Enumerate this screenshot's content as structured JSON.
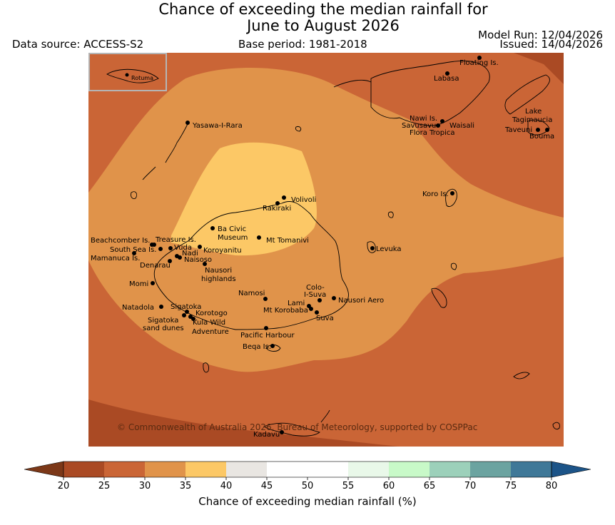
{
  "title": {
    "line1": "Chance of exceeding the median rainfall for",
    "line2": "June to August 2026"
  },
  "header": {
    "data_source": "Data source: ACCESS-S2",
    "base_period": "Base period: 1981-2018",
    "model_run": "Model Run: 12/04/2026",
    "issued": "Issued: 14/04/2026"
  },
  "inset": {
    "label": "Rotuma"
  },
  "copyright": "© Commonwealth of Australia 2026, Bureau of Meteorology, supported by COSPPac",
  "places": [
    {
      "name": "Floating Is."
    },
    {
      "name": "Labasa"
    },
    {
      "name": "Yasawa-I-Rara"
    },
    {
      "name": "Nawi Is."
    },
    {
      "name": "Savusavu"
    },
    {
      "name": "Waisali"
    },
    {
      "name": "Flora Tropica"
    },
    {
      "name": "Lake"
    },
    {
      "name": "Tagimaucia"
    },
    {
      "name": "Taveuni"
    },
    {
      "name": "Bouma"
    },
    {
      "name": "Koro Is."
    },
    {
      "name": "Volivoli"
    },
    {
      "name": "Rakiraki"
    },
    {
      "name": "Ba Civic"
    },
    {
      "name": "Museum"
    },
    {
      "name": "Mt Tomanivi"
    },
    {
      "name": "Levuka"
    },
    {
      "name": "Beachcomber Is."
    },
    {
      "name": "Treasure Is."
    },
    {
      "name": "South Sea Is."
    },
    {
      "name": "Vuda"
    },
    {
      "name": "Koroyanitu"
    },
    {
      "name": "Mamanuca Is."
    },
    {
      "name": "Nadi"
    },
    {
      "name": "Naisoso"
    },
    {
      "name": "Denarau"
    },
    {
      "name": "Nausori"
    },
    {
      "name": "highlands"
    },
    {
      "name": "Momi"
    },
    {
      "name": "Colo-"
    },
    {
      "name": "I-Suva"
    },
    {
      "name": "Namosi"
    },
    {
      "name": "Lami"
    },
    {
      "name": "Nausori Aero"
    },
    {
      "name": "Natadola"
    },
    {
      "name": "Sigatoka"
    },
    {
      "name": "Korotogo"
    },
    {
      "name": "Mt Korobaba"
    },
    {
      "name": "Suva"
    },
    {
      "name": "Sigatoka"
    },
    {
      "name": "sand dunes"
    },
    {
      "name": "Kula Wild"
    },
    {
      "name": "Adventure"
    },
    {
      "name": "Pacific Harbour"
    },
    {
      "name": "Beqa Is."
    },
    {
      "name": "Kadavu"
    }
  ],
  "colorbar": {
    "ticks": [
      "20",
      "25",
      "30",
      "35",
      "40",
      "45",
      "50",
      "55",
      "60",
      "65",
      "70",
      "75",
      "80"
    ],
    "colors": [
      "#aa4a24",
      "#ca6536",
      "#e0934a",
      "#fcc866",
      "#e9e6e2",
      "#ffffff",
      "#ffffff",
      "#e9f8e9",
      "#c8f9c8",
      "#9cd0ba",
      "#6ba3a0",
      "#3f7898"
    ],
    "under_color": "#7c3818",
    "over_color": "#1c5488",
    "label": "Chance of exceeding median rainfall (%)"
  },
  "map_colors": {
    "band_20_25": "#aa4a24",
    "band_25_30": "#ca6536",
    "band_30_35": "#e0934a",
    "band_35_40": "#fcc866"
  }
}
